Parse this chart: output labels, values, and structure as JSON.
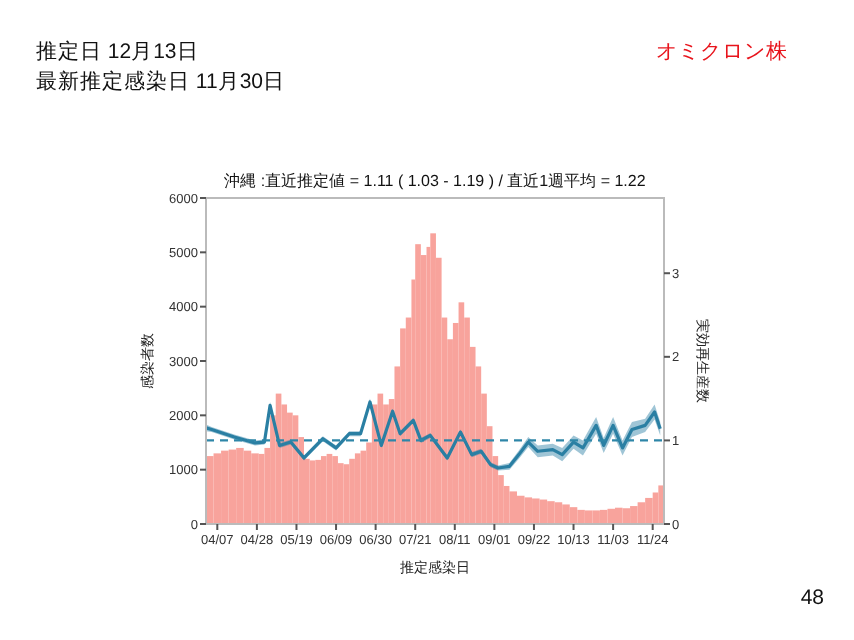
{
  "chart_data": {
    "type": "bar",
    "title": "沖縄 :直近推定値 = 1.11 ( 1.03 - 1.19 ) / 直近1週平均 = 1.22",
    "xlabel": "推定感染日",
    "ylabel": "感染者数",
    "y2label": "実効再生産数",
    "annotations": [
      "推定日  12月13日",
      "最新推定感染日  11月30日",
      "オミクロン株",
      "48"
    ],
    "xlim": [
      "--04-01",
      "--11-30"
    ],
    "xticks": [
      {
        "value": "--04-07",
        "label": "04/07"
      },
      {
        "value": "--04-28",
        "label": "04/28"
      },
      {
        "value": "--05-19",
        "label": "05/19"
      },
      {
        "value": "--06-09",
        "label": "06/09"
      },
      {
        "value": "--06-30",
        "label": "06/30"
      },
      {
        "value": "--07-21",
        "label": "07/21"
      },
      {
        "value": "--08-11",
        "label": "08/11"
      },
      {
        "value": "--09-01",
        "label": "09/01"
      },
      {
        "value": "--09-22",
        "label": "09/22"
      },
      {
        "value": "--10-13",
        "label": "10/13"
      },
      {
        "value": "--11-03",
        "label": "11/03"
      },
      {
        "value": "--11-24",
        "label": "11/24"
      }
    ],
    "ylim": [
      0,
      6000
    ],
    "yticks": [
      0,
      1000,
      2000,
      3000,
      4000,
      5000,
      6000
    ],
    "y2lim": [
      0,
      3.9
    ],
    "y2ticks": [
      0,
      1,
      2,
      3
    ],
    "ref_lines": [
      {
        "axis": "y2",
        "value": 1,
        "color": "#2e86a8",
        "line_style": "dashed"
      }
    ],
    "series": [
      {
        "color": "#f8a39c",
        "x": [
          "--04-01",
          "--04-05",
          "--04-09",
          "--04-13",
          "--04-17",
          "--04-21",
          "--04-25",
          "--04-29",
          "--05-02",
          "--05-05",
          "--05-08",
          "--05-11",
          "--05-14",
          "--05-17",
          "--05-20",
          "--05-23",
          "--05-26",
          "--05-29",
          "--06-01",
          "--06-04",
          "--06-07",
          "--06-10",
          "--06-13",
          "--06-16",
          "--06-19",
          "--06-22",
          "--06-25",
          "--06-28",
          "--07-01",
          "--07-04",
          "--07-07",
          "--07-10",
          "--07-13",
          "--07-16",
          "--07-19",
          "--07-21",
          "--07-24",
          "--07-27",
          "--07-29",
          "--08-01",
          "--08-04",
          "--08-07",
          "--08-10",
          "--08-13",
          "--08-16",
          "--08-19",
          "--08-22",
          "--08-25",
          "--08-28",
          "--08-31",
          "--09-03",
          "--09-06",
          "--09-09",
          "--09-13",
          "--09-17",
          "--09-21",
          "--09-25",
          "--09-29",
          "--10-03",
          "--10-07",
          "--10-11",
          "--10-15",
          "--10-19",
          "--10-23",
          "--10-27",
          "--10-31",
          "--11-04",
          "--11-08",
          "--11-12",
          "--11-16",
          "--11-20",
          "--11-24",
          "--11-27"
        ],
        "values": [
          1250,
          1300,
          1350,
          1370,
          1400,
          1350,
          1300,
          1290,
          1400,
          2000,
          2400,
          2200,
          2050,
          2000,
          1600,
          1200,
          1170,
          1180,
          1250,
          1290,
          1250,
          1120,
          1100,
          1200,
          1300,
          1350,
          1500,
          2200,
          2400,
          2200,
          2300,
          2900,
          3600,
          3800,
          4500,
          5150,
          4950,
          5100,
          5350,
          4900,
          3800,
          3400,
          3700,
          4080,
          3800,
          3260,
          2900,
          2400,
          1800,
          1250,
          900,
          700,
          600,
          520,
          490,
          470,
          450,
          420,
          400,
          360,
          310,
          260,
          250,
          250,
          260,
          280,
          300,
          290,
          330,
          400,
          480,
          580,
          710
        ]
      },
      {
        "type": "line",
        "axis": "y2",
        "color": "#2a7fa3",
        "x": [
          "--04-01",
          "--04-04",
          "--04-16",
          "--04-27",
          "--05-02",
          "--05-05",
          "--05-10",
          "--05-16",
          "--05-23",
          "--06-02",
          "--06-09",
          "--06-16",
          "--06-22",
          "--06-27",
          "--07-03",
          "--07-09",
          "--07-13",
          "--07-20",
          "--07-24",
          "--07-29",
          "--08-07",
          "--08-14",
          "--08-20",
          "--08-25",
          "--08-30",
          "--09-03",
          "--09-09",
          "--09-14",
          "--09-19",
          "--09-24",
          "--10-02",
          "--10-07",
          "--10-13",
          "--10-18",
          "--10-25",
          "--10-29",
          "--11-03",
          "--11-08",
          "--11-13",
          "--11-20",
          "--11-25",
          "--11-28"
        ],
        "values": [
          1.15,
          1.13,
          1.04,
          0.97,
          0.98,
          1.42,
          0.94,
          0.98,
          0.79,
          1.02,
          0.91,
          1.08,
          1.08,
          1.46,
          0.94,
          1.35,
          1.08,
          1.24,
          1.0,
          1.06,
          0.79,
          1.1,
          0.83,
          0.87,
          0.71,
          0.67,
          0.69,
          0.83,
          0.98,
          0.87,
          0.89,
          0.83,
          0.98,
          0.91,
          1.18,
          0.94,
          1.18,
          0.91,
          1.13,
          1.18,
          1.34,
          1.14
        ],
        "lower": [
          1.11,
          1.1,
          1.01,
          0.94,
          0.95,
          1.38,
          0.91,
          0.95,
          0.76,
          0.99,
          0.88,
          1.05,
          1.05,
          1.42,
          0.91,
          1.32,
          1.05,
          1.21,
          0.97,
          1.03,
          0.76,
          1.07,
          0.8,
          0.84,
          0.68,
          0.64,
          0.65,
          0.78,
          0.92,
          0.8,
          0.82,
          0.75,
          0.9,
          0.82,
          1.08,
          0.85,
          1.08,
          0.82,
          1.04,
          1.1,
          1.25,
          1.06
        ],
        "upper": [
          1.19,
          1.16,
          1.07,
          1.0,
          1.01,
          1.46,
          0.97,
          1.01,
          0.82,
          1.05,
          0.94,
          1.11,
          1.11,
          1.5,
          0.97,
          1.38,
          1.11,
          1.27,
          1.03,
          1.09,
          0.82,
          1.13,
          0.86,
          0.9,
          0.74,
          0.7,
          0.73,
          0.88,
          1.04,
          0.94,
          0.96,
          0.91,
          1.06,
          1.0,
          1.28,
          1.03,
          1.28,
          1.0,
          1.22,
          1.26,
          1.43,
          1.22
        ]
      }
    ]
  }
}
